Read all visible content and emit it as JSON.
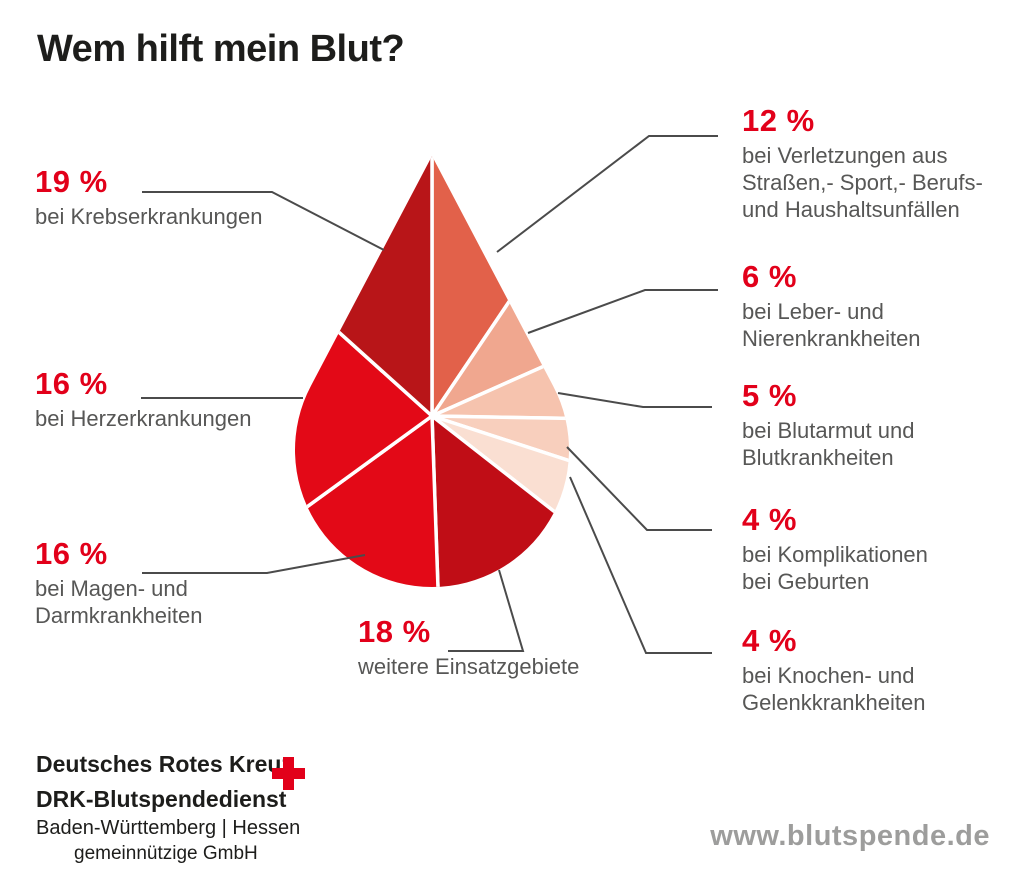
{
  "title": "Wem hilft mein Blut?",
  "chart_data": {
    "type": "pie",
    "shape": "teardrop-blood-drop",
    "title": "Wem hilft mein Blut?",
    "unit": "%",
    "total": 100,
    "legend_position": "callouts-both-sides",
    "accent_color": "#e2001a",
    "label_color": "#575756",
    "leader_line_color": "#4b4b4b",
    "divider_color": "#ffffff",
    "slices": [
      {
        "id": "verletzungen",
        "label": "bei Verletzungen aus Straßen,- Sport,- Berufs- und Haushaltsunfällen",
        "value": 12,
        "color": "#e2614a",
        "start_angle": 0,
        "end_angle": 34
      },
      {
        "id": "leber",
        "label": "bei Leber- und Nierenkrankheiten",
        "value": 6,
        "color": "#f0a78f",
        "start_angle": 34,
        "end_angle": 66
      },
      {
        "id": "blutarmut",
        "label": "bei Blutarmut und Blutkrankheiten",
        "value": 5,
        "color": "#f6c3ae",
        "start_angle": 66,
        "end_angle": 91
      },
      {
        "id": "geburten",
        "label": "bei Komplikationen bei Geburten",
        "value": 4,
        "color": "#f8cfbd",
        "start_angle": 91,
        "end_angle": 108
      },
      {
        "id": "knochen",
        "label": "bei Knochen- und Gelenkkrankheiten",
        "value": 4,
        "color": "#fadfd2",
        "start_angle": 108,
        "end_angle": 128
      },
      {
        "id": "weitere",
        "label": "weitere Einsatzgebiete",
        "value": 18,
        "color": "#c00d16",
        "start_angle": 128,
        "end_angle": 178
      },
      {
        "id": "magen",
        "label": "bei Magen- und Darmkrankheiten",
        "value": 16,
        "color": "#e30917",
        "start_angle": 178,
        "end_angle": 234
      },
      {
        "id": "herz",
        "label": "bei Herzerkrankungen",
        "value": 16,
        "color": "#e30917",
        "start_angle": 234,
        "end_angle": 312
      },
      {
        "id": "krebs",
        "label": "bei Krebserkrankungen",
        "value": 19,
        "color": "#b81518",
        "start_angle": 312,
        "end_angle": 360
      }
    ]
  },
  "callouts": [
    {
      "id": "krebs",
      "pct": "19 %",
      "lines": [
        "bei Krebserkrankungen"
      ]
    },
    {
      "id": "herz",
      "pct": "16 %",
      "lines": [
        "bei Herzerkrankungen"
      ]
    },
    {
      "id": "magen",
      "pct": "16 %",
      "lines": [
        "bei Magen- und",
        "Darmkrankheiten"
      ]
    },
    {
      "id": "weitere",
      "pct": "18 %",
      "lines": [
        "weitere Einsatzgebiete"
      ]
    },
    {
      "id": "verletzungen",
      "pct": "12 %",
      "lines": [
        "bei Verletzungen aus",
        "Straßen,- Sport,- Berufs-",
        "und Haushaltsunfällen"
      ]
    },
    {
      "id": "leber",
      "pct": "6 %",
      "lines": [
        "bei Leber- und",
        "Nierenkrankheiten"
      ]
    },
    {
      "id": "blutarmut",
      "pct": "5 %",
      "lines": [
        "bei Blutarmut und",
        "Blutkrankheiten"
      ]
    },
    {
      "id": "geburten",
      "pct": "4 %",
      "lines": [
        "bei Komplikationen",
        "bei Geburten"
      ]
    },
    {
      "id": "knochen",
      "pct": "4 %",
      "lines": [
        "bei Knochen- und",
        "Gelenkkrankheiten"
      ]
    }
  ],
  "footer": {
    "org_line1": "Deutsches Rotes Kreuz",
    "org_line2": "DRK-Blutspendedienst",
    "org_line3": "Baden-Württemberg | Hessen",
    "org_line4": "gemeinnützige GmbH",
    "cross_color": "#e2001a",
    "website": "www.blutspende.de"
  }
}
